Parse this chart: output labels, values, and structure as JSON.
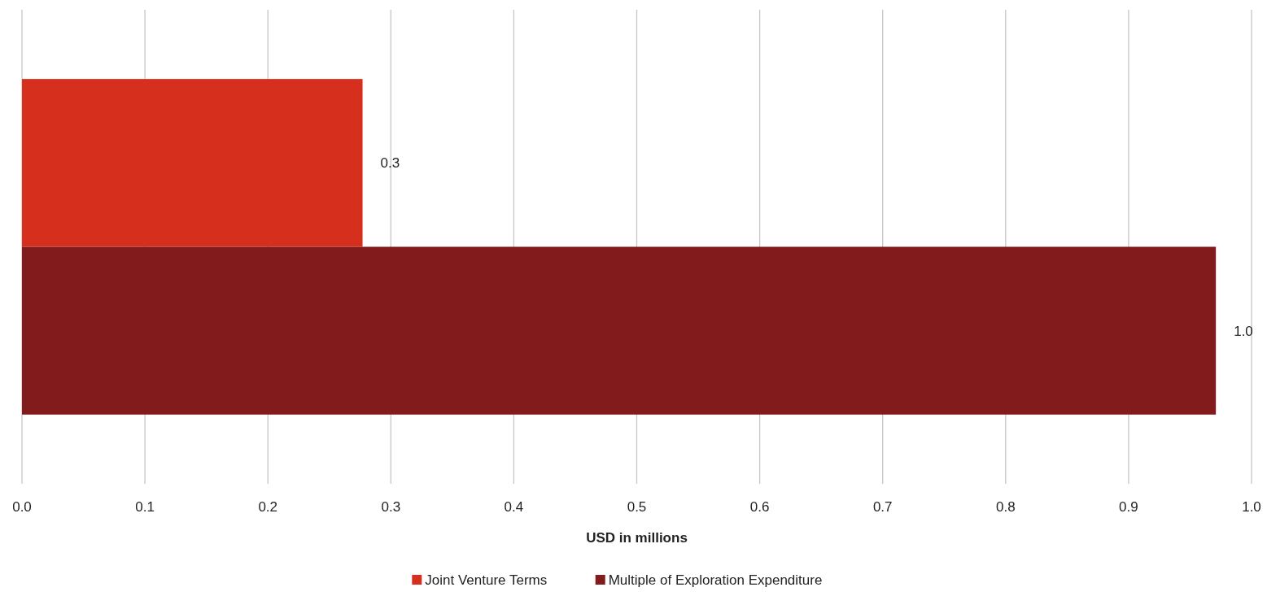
{
  "chart_data": {
    "type": "bar",
    "orientation": "horizontal",
    "categories": [
      null
    ],
    "series": [
      {
        "name": "Joint Venture Terms",
        "color": "#d72f1e",
        "values": [
          0.277
        ],
        "value_labels": [
          "0.3"
        ]
      },
      {
        "name": "Multiple of Exploration Expenditure",
        "color": "#821b1b",
        "values": [
          0.971
        ],
        "value_labels": [
          "1.0"
        ]
      }
    ],
    "xlabel": "USD in millions",
    "xlim": [
      0,
      1
    ],
    "xticks": [
      {
        "value": 0,
        "label": "0.0"
      },
      {
        "value": 0.1,
        "label": "0.1"
      },
      {
        "value": 0.2,
        "label": "0.2"
      },
      {
        "value": 0.3,
        "label": "0.3"
      },
      {
        "value": 0.4,
        "label": "0.4"
      },
      {
        "value": 0.5,
        "label": "0.5"
      },
      {
        "value": 0.6,
        "label": "0.6"
      },
      {
        "value": 0.7,
        "label": "0.7"
      },
      {
        "value": 0.8,
        "label": "0.8"
      },
      {
        "value": 0.9,
        "label": "0.9"
      },
      {
        "value": 1,
        "label": "1.0"
      }
    ],
    "grid": "x",
    "legend": "bottom"
  }
}
